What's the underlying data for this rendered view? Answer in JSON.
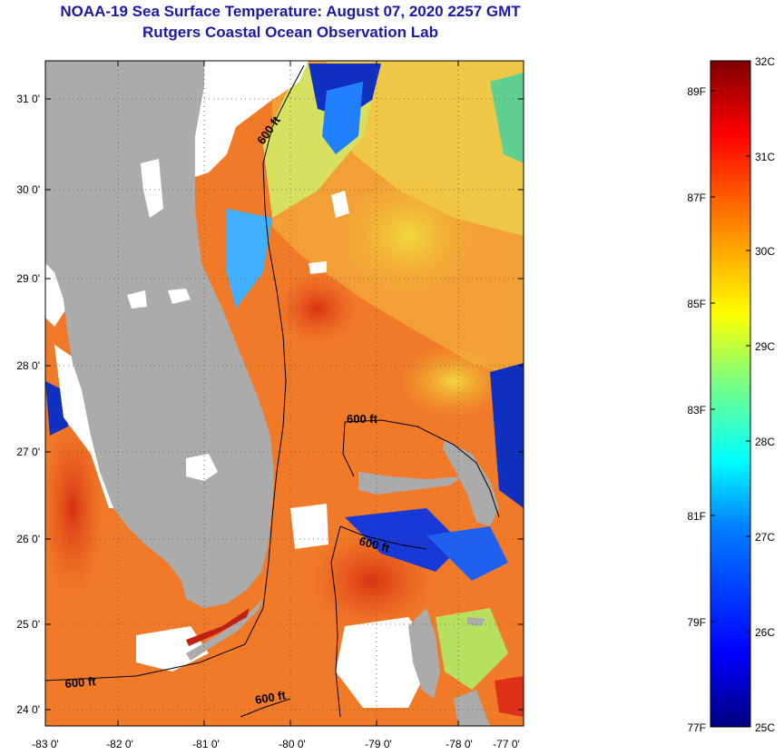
{
  "header": {
    "title": "NOAA-19 Sea Surface Temperature:  August 07, 2020 2257 GMT",
    "subtitle": "Rutgers Coastal Ocean Observation Lab"
  },
  "map": {
    "lon_range": [
      -83,
      -76.85
    ],
    "lat_range": [
      23.85,
      31.45
    ],
    "lon_ticks": [
      "-83 0'",
      "-82 0'",
      "-81 0'",
      "-80 0'",
      "-79 0'",
      "-78 0'",
      "-77 0'"
    ],
    "lat_ticks": [
      "24 0'",
      "25 0'",
      "26 0'",
      "27 0'",
      "28 0'",
      "29 0'",
      "30 0'",
      "31 0'"
    ],
    "isobath_labels": [
      "600 ft",
      "600 ft",
      "600 ft",
      "600 ft",
      "600 ft"
    ],
    "land_color": "#ababab",
    "cloud_color": "#ffffff"
  },
  "colorbar": {
    "celsius_labels": [
      "32C",
      "31C",
      "30C",
      "29C",
      "28C",
      "27C",
      "26C",
      "25C"
    ],
    "fahrenheit_labels": [
      "89F",
      "87F",
      "85F",
      "83F",
      "81F",
      "79F",
      "77F"
    ],
    "colors": [
      "#00007f",
      "#0000ff",
      "#007fff",
      "#00ffff",
      "#7fff7f",
      "#ffff00",
      "#ff7f00",
      "#ff0000",
      "#7f0000"
    ]
  }
}
